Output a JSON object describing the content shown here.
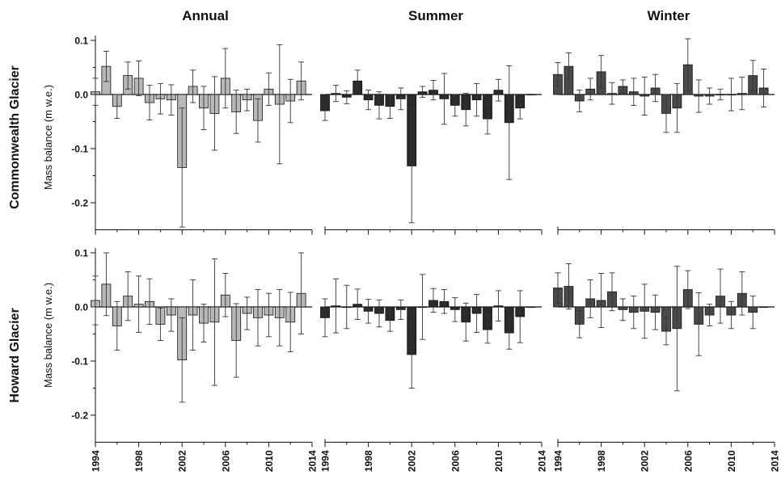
{
  "figure": {
    "columns": [
      "Annual",
      "Summer",
      "Winter"
    ],
    "rows": [
      {
        "title": "Commonwealth Glacier",
        "ylabel": "Mass balance (m w.e.)"
      },
      {
        "title": "Howard Glacier",
        "ylabel": "Mass balance (m w.e.)"
      }
    ],
    "colors": {
      "Annual": "#b8b8b8",
      "Summer": "#2a2a2a",
      "Winter": "#4a4a4a",
      "error_bar": "#333333",
      "axis": "#111111"
    }
  },
  "chart_data": [
    {
      "type": "bar",
      "panel": "Commonwealth Glacier - Annual",
      "title": "Annual",
      "ylabel": "Mass balance (m w.e.)",
      "ylim": [
        -0.25,
        0.1
      ],
      "yticks": [
        0.1,
        0.0,
        -0.1,
        -0.2
      ],
      "xticks": [
        1994,
        1998,
        2002,
        2006,
        2010,
        2014
      ],
      "grid": false,
      "x": [
        1994,
        1995,
        1996,
        1997,
        1998,
        1999,
        2000,
        2001,
        2002,
        2003,
        2004,
        2005,
        2006,
        2007,
        2008,
        2009,
        2010,
        2011,
        2012,
        2013
      ],
      "values": [
        0.005,
        0.052,
        -0.022,
        0.035,
        0.03,
        -0.015,
        -0.008,
        -0.01,
        -0.135,
        0.015,
        -0.025,
        -0.035,
        0.03,
        -0.032,
        -0.01,
        -0.048,
        0.01,
        -0.018,
        -0.012,
        0.025
      ],
      "error": [
        0.025,
        0.028,
        0.022,
        0.025,
        0.032,
        0.032,
        0.028,
        0.028,
        0.11,
        0.03,
        0.04,
        0.068,
        0.055,
        0.04,
        0.02,
        0.04,
        0.03,
        0.11,
        0.04,
        0.035
      ]
    },
    {
      "type": "bar",
      "panel": "Commonwealth Glacier - Summer",
      "title": "Summer",
      "ylabel": "Mass balance (m w.e.)",
      "ylim": [
        -0.25,
        0.1
      ],
      "yticks": [
        0.1,
        0.0,
        -0.1,
        -0.2
      ],
      "xticks": [
        1994,
        1998,
        2002,
        2006,
        2010,
        2014
      ],
      "grid": false,
      "x": [
        1994,
        1995,
        1996,
        1997,
        1998,
        1999,
        2000,
        2001,
        2002,
        2003,
        2004,
        2005,
        2006,
        2007,
        2008,
        2009,
        2010,
        2011,
        2012,
        2013
      ],
      "values": [
        -0.03,
        0.002,
        -0.005,
        0.025,
        -0.01,
        -0.02,
        -0.022,
        -0.008,
        -0.132,
        0.005,
        0.008,
        -0.008,
        -0.02,
        -0.028,
        -0.01,
        -0.045,
        0.008,
        -0.052,
        -0.025,
        0.0
      ],
      "error": [
        0.018,
        0.015,
        0.012,
        0.02,
        0.018,
        0.025,
        0.022,
        0.02,
        0.105,
        0.01,
        0.018,
        0.047,
        0.02,
        0.03,
        0.03,
        0.028,
        0.02,
        0.105,
        0.02,
        0.0
      ]
    },
    {
      "type": "bar",
      "panel": "Commonwealth Glacier - Winter",
      "title": "Winter",
      "ylabel": "Mass balance (m w.e.)",
      "ylim": [
        -0.25,
        0.1
      ],
      "yticks": [
        0.1,
        0.0,
        -0.1,
        -0.2
      ],
      "xticks": [
        1994,
        1998,
        2002,
        2006,
        2010,
        2014
      ],
      "grid": false,
      "x": [
        1994,
        1995,
        1996,
        1997,
        1998,
        1999,
        2000,
        2001,
        2002,
        2003,
        2004,
        2005,
        2006,
        2007,
        2008,
        2009,
        2010,
        2011,
        2012,
        2013
      ],
      "values": [
        0.037,
        0.052,
        -0.012,
        0.01,
        0.042,
        0.002,
        0.015,
        0.005,
        -0.003,
        0.012,
        -0.035,
        -0.025,
        0.055,
        -0.003,
        -0.003,
        0.0,
        0.0,
        0.002,
        0.035,
        0.012
      ],
      "error": [
        0.022,
        0.025,
        0.02,
        0.02,
        0.03,
        0.02,
        0.012,
        0.025,
        0.035,
        0.025,
        0.035,
        0.045,
        0.048,
        0.03,
        0.015,
        0.01,
        0.03,
        0.03,
        0.028,
        0.035
      ]
    },
    {
      "type": "bar",
      "panel": "Howard Glacier - Annual",
      "title": "Annual",
      "ylabel": "Mass balance (m w.e.)",
      "ylim": [
        -0.25,
        0.1
      ],
      "yticks": [
        0.1,
        0.0,
        -0.1,
        -0.2
      ],
      "xticks": [
        1994,
        1998,
        2002,
        2006,
        2010,
        2014
      ],
      "grid": false,
      "x": [
        1994,
        1995,
        1996,
        1997,
        1998,
        1999,
        2000,
        2001,
        2002,
        2003,
        2004,
        2005,
        2006,
        2007,
        2008,
        2009,
        2010,
        2011,
        2012,
        2013
      ],
      "values": [
        0.012,
        0.042,
        -0.035,
        0.02,
        0.005,
        0.01,
        -0.032,
        -0.015,
        -0.098,
        -0.015,
        -0.03,
        -0.028,
        0.022,
        -0.062,
        -0.012,
        -0.02,
        -0.015,
        -0.02,
        -0.028,
        0.025
      ],
      "error": [
        0.045,
        0.058,
        0.045,
        0.045,
        0.052,
        0.042,
        0.03,
        0.03,
        0.078,
        0.065,
        0.035,
        0.117,
        0.04,
        0.068,
        0.03,
        0.052,
        0.04,
        0.052,
        0.055,
        0.075
      ]
    },
    {
      "type": "bar",
      "panel": "Howard Glacier - Summer",
      "title": "Summer",
      "ylabel": "Mass balance (m w.e.)",
      "ylim": [
        -0.25,
        0.1
      ],
      "yticks": [
        0.1,
        0.0,
        -0.1,
        -0.2
      ],
      "xticks": [
        1994,
        1998,
        2002,
        2006,
        2010,
        2014
      ],
      "grid": false,
      "x": [
        1994,
        1995,
        1996,
        1997,
        1998,
        1999,
        2000,
        2001,
        2002,
        2003,
        2004,
        2005,
        2006,
        2007,
        2008,
        2009,
        2010,
        2011,
        2012,
        2013
      ],
      "values": [
        -0.02,
        0.002,
        0.0,
        0.005,
        -0.008,
        -0.012,
        -0.025,
        -0.005,
        -0.088,
        0.0,
        0.012,
        0.01,
        -0.005,
        -0.028,
        -0.012,
        -0.042,
        0.002,
        -0.048,
        -0.018,
        0.0
      ],
      "error": [
        0.035,
        0.05,
        0.04,
        0.028,
        0.022,
        0.025,
        0.02,
        0.018,
        0.062,
        0.06,
        0.022,
        0.022,
        0.022,
        0.035,
        0.035,
        0.025,
        0.028,
        0.03,
        0.048,
        0.0
      ]
    },
    {
      "type": "bar",
      "panel": "Howard Glacier - Winter",
      "title": "Winter",
      "ylabel": "Mass balance (m w.e.)",
      "ylim": [
        -0.25,
        0.1
      ],
      "yticks": [
        0.1,
        0.0,
        -0.1,
        -0.2
      ],
      "xticks": [
        1994,
        1998,
        2002,
        2006,
        2010,
        2014
      ],
      "grid": false,
      "x": [
        1994,
        1995,
        1996,
        1997,
        1998,
        1999,
        2000,
        2001,
        2002,
        2003,
        2004,
        2005,
        2006,
        2007,
        2008,
        2009,
        2010,
        2011,
        2012,
        2013
      ],
      "values": [
        0.035,
        0.038,
        -0.032,
        0.015,
        0.012,
        0.028,
        -0.005,
        -0.01,
        -0.008,
        -0.01,
        -0.045,
        -0.04,
        0.032,
        -0.032,
        -0.015,
        0.02,
        -0.015,
        0.025,
        -0.01,
        0.0
      ],
      "error": [
        0.028,
        0.042,
        0.025,
        0.035,
        0.05,
        0.035,
        0.02,
        0.03,
        0.05,
        0.032,
        0.025,
        0.115,
        0.035,
        0.058,
        0.02,
        0.05,
        0.025,
        0.04,
        0.03,
        0.0
      ]
    }
  ]
}
